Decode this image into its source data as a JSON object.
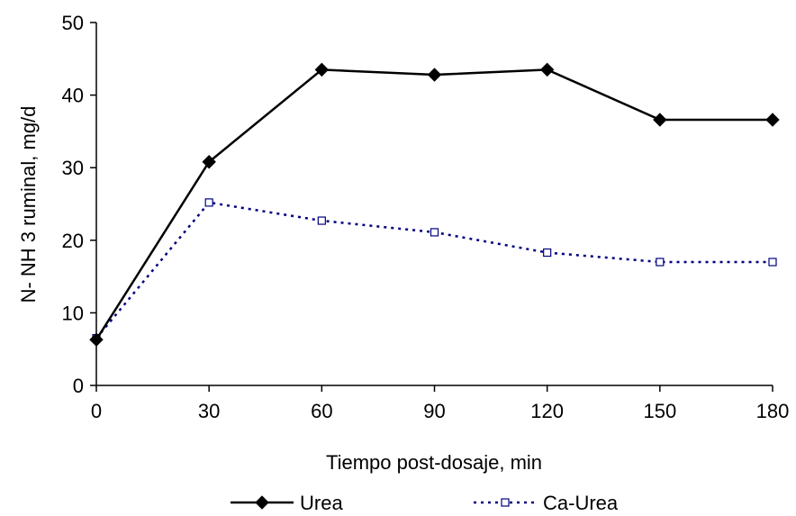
{
  "chart_data": {
    "type": "line",
    "title": "",
    "xlabel": "Tiempo post-dosaje, min",
    "ylabel": "N- NH 3 ruminal, mg/d",
    "x": [
      0,
      30,
      60,
      90,
      120,
      150,
      180
    ],
    "xlim": [
      0,
      180
    ],
    "ylim": [
      0,
      50
    ],
    "xticks": [
      0,
      30,
      60,
      90,
      120,
      150,
      180
    ],
    "yticks": [
      0,
      10,
      20,
      30,
      40,
      50
    ],
    "grid": false,
    "legend_position": "bottom",
    "series": [
      {
        "name": "Urea",
        "values": [
          6.3,
          30.8,
          43.5,
          42.8,
          43.5,
          36.6,
          36.6
        ],
        "color": "#000000",
        "line_style": "solid",
        "marker": "diamond-filled"
      },
      {
        "name": "Ca-Urea",
        "values": [
          6.5,
          25.2,
          22.7,
          21.1,
          18.3,
          17.0,
          17.0
        ],
        "color": "#000080",
        "line_style": "dotted",
        "marker": "square-open"
      }
    ]
  }
}
